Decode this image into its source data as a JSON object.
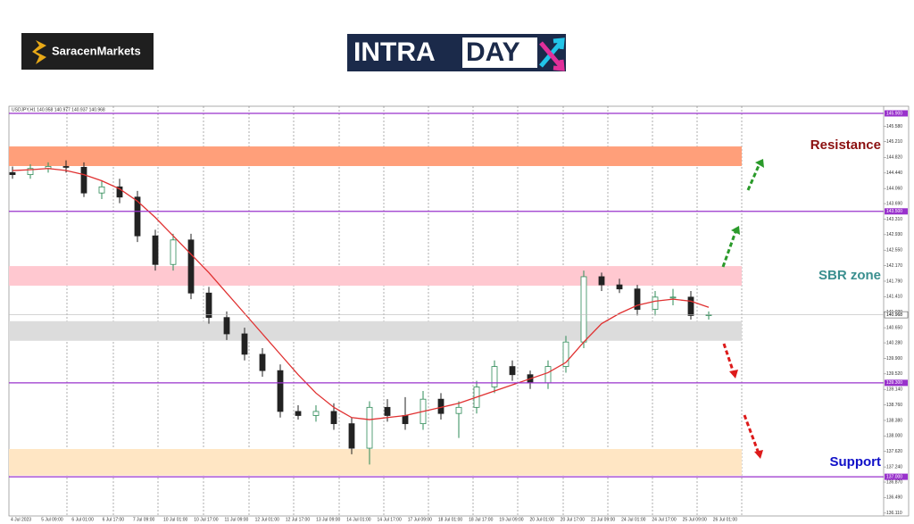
{
  "chart_data": {
    "type": "candlestick",
    "brand": "SaracenMarkets",
    "logo": {
      "left": "INTRA",
      "right": "DAY"
    },
    "header": "USDJPY,H1 140.958 140.977 140.937 140.968",
    "candles": {
      "open": [
        144.45,
        144.4,
        144.55,
        144.6,
        144.58,
        143.95,
        144.1,
        143.85,
        142.9,
        142.2,
        142.8,
        141.5,
        140.9,
        140.5,
        140.0,
        139.6,
        138.6,
        138.5,
        138.6,
        138.3,
        137.7,
        138.7,
        138.5,
        138.3,
        138.9,
        138.55,
        138.7,
        139.2,
        139.7,
        139.5,
        139.3,
        139.7,
        140.3,
        141.9,
        141.7,
        141.6,
        141.1,
        141.4,
        141.4,
        140.95
      ],
      "high": [
        144.6,
        144.65,
        144.7,
        144.75,
        144.7,
        144.25,
        144.3,
        144.0,
        143.05,
        142.95,
        142.95,
        141.65,
        141.05,
        140.65,
        140.15,
        139.75,
        138.75,
        138.75,
        138.8,
        138.45,
        138.85,
        138.9,
        138.95,
        139.1,
        139.05,
        138.85,
        139.35,
        139.85,
        139.85,
        139.6,
        139.85,
        140.45,
        142.05,
        142.0,
        141.85,
        141.7,
        141.55,
        141.6,
        141.55,
        141.05
      ],
      "low": [
        144.3,
        144.3,
        144.45,
        144.45,
        143.85,
        143.8,
        143.7,
        142.75,
        142.05,
        142.05,
        141.35,
        140.75,
        140.35,
        139.85,
        139.45,
        138.45,
        138.4,
        138.35,
        138.15,
        137.55,
        137.3,
        138.35,
        138.15,
        138.15,
        138.4,
        137.95,
        138.55,
        139.05,
        139.35,
        139.15,
        139.15,
        139.55,
        140.15,
        141.55,
        141.5,
        140.95,
        140.95,
        141.2,
        140.85,
        140.85
      ],
      "close": [
        144.4,
        144.55,
        144.6,
        144.58,
        143.95,
        144.1,
        143.85,
        142.9,
        142.2,
        142.8,
        141.5,
        140.9,
        140.5,
        140.0,
        139.6,
        138.6,
        138.5,
        138.6,
        138.3,
        137.7,
        138.7,
        138.5,
        138.3,
        138.9,
        138.55,
        138.7,
        139.2,
        139.7,
        139.5,
        139.3,
        139.7,
        140.3,
        141.9,
        141.7,
        141.6,
        141.1,
        141.4,
        141.4,
        140.95,
        140.97
      ],
      "up_color": "#2e8b57",
      "down_color": "#222222"
    },
    "moving_average": {
      "color": "#e03030",
      "values": [
        144.5,
        144.52,
        144.55,
        144.5,
        144.4,
        144.25,
        144.05,
        143.75,
        143.35,
        142.9,
        142.45,
        142.0,
        141.5,
        141.0,
        140.5,
        140.0,
        139.5,
        139.05,
        138.7,
        138.45,
        138.4,
        138.45,
        138.5,
        138.6,
        138.7,
        138.8,
        138.95,
        139.1,
        139.25,
        139.4,
        139.55,
        139.8,
        140.3,
        140.75,
        141.0,
        141.2,
        141.3,
        141.35,
        141.3,
        141.15
      ]
    },
    "xlabels": [
      "4 Jul 2023",
      "5 Jul 09:00",
      "6 Jul 01:00",
      "6 Jul 17:00",
      "7 Jul 09:00",
      "10 Jul 01:00",
      "10 Jul 17:00",
      "11 Jul 09:00",
      "12 Jul 01:00",
      "12 Jul 17:00",
      "13 Jul 09:00",
      "14 Jul 01:00",
      "14 Jul 17:00",
      "17 Jul 09:00",
      "18 Jul 01:00",
      "18 Jul 17:00",
      "19 Jul 09:00",
      "20 Jul 01:00",
      "20 Jul 17:00",
      "21 Jul 09:00",
      "24 Jul 01:00",
      "24 Jul 17:00",
      "25 Jul 09:00",
      "26 Jul 01:00"
    ],
    "ylim": [
      136.04,
      146.075
    ],
    "yticks": [
      {
        "value": 145.58,
        "label": "145.580"
      },
      {
        "value": 145.21,
        "label": "145.210"
      },
      {
        "value": 144.82,
        "label": "144.820"
      },
      {
        "value": 144.44,
        "label": "144.440"
      },
      {
        "value": 144.06,
        "label": "144.060"
      },
      {
        "value": 143.69,
        "label": "143.690"
      },
      {
        "value": 143.31,
        "label": "143.310"
      },
      {
        "value": 142.93,
        "label": "142.930"
      },
      {
        "value": 142.55,
        "label": "142.550"
      },
      {
        "value": 142.17,
        "label": "142.170"
      },
      {
        "value": 141.79,
        "label": "141.790"
      },
      {
        "value": 141.41,
        "label": "141.410"
      },
      {
        "value": 141.03,
        "label": "141.030"
      },
      {
        "value": 140.65,
        "label": "140.650"
      },
      {
        "value": 140.28,
        "label": "140.280"
      },
      {
        "value": 139.9,
        "label": "139.900"
      },
      {
        "value": 139.52,
        "label": "139.520"
      },
      {
        "value": 139.14,
        "label": "139.140"
      },
      {
        "value": 138.76,
        "label": "138.760"
      },
      {
        "value": 138.38,
        "label": "138.380"
      },
      {
        "value": 138.0,
        "label": "138.000"
      },
      {
        "value": 137.62,
        "label": "137.620"
      },
      {
        "value": 137.24,
        "label": "137.240"
      },
      {
        "value": 136.87,
        "label": "136.870"
      },
      {
        "value": 136.49,
        "label": "136.490"
      },
      {
        "value": 136.11,
        "label": "136.110"
      }
    ],
    "levels": {
      "color": "#9932cc",
      "values": [
        {
          "value": 145.9,
          "label": "145.900"
        },
        {
          "value": 143.5,
          "label": "143.500"
        },
        {
          "value": 139.3,
          "label": "139.300"
        },
        {
          "value": 137.0,
          "label": "137.000"
        }
      ]
    },
    "current_price": {
      "value": 140.968,
      "label": "140.968"
    },
    "zones": [
      {
        "name": "Resistance",
        "from": 144.61,
        "to": 145.09,
        "color": "#ff9f7a",
        "text_color": "#8b1010"
      },
      {
        "name": "SBR zone",
        "from": 141.68,
        "to": 142.16,
        "color": "#ffc8d0",
        "text_color": "#3a8f8f"
      },
      {
        "name": null,
        "from": 140.33,
        "to": 140.81,
        "color": "#dcdcdc",
        "text_color": null
      },
      {
        "name": "Support",
        "from": 137.03,
        "to": 137.68,
        "color": "#ffe6c4",
        "text_color": "#1010c8"
      }
    ]
  }
}
